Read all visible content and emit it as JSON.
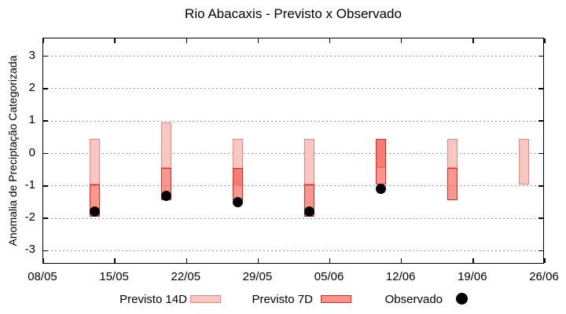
{
  "chart_data": {
    "type": "bar",
    "title": "Rio Abacaxis - Previsto x Observado",
    "xlabel": "",
    "ylabel": "Anomalia de Preciptação Categorizada",
    "ylim": [
      -3.4,
      3.55
    ],
    "y_ticks": [
      -3,
      -2,
      -1,
      0,
      1,
      2,
      3
    ],
    "x_tick_labels": [
      "08/05",
      "15/05",
      "22/05",
      "29/05",
      "05/06",
      "12/06",
      "19/06",
      "26/06"
    ],
    "x_tick_days": [
      0,
      7,
      14,
      21,
      28,
      35,
      42,
      49
    ],
    "x_axis_span_days": 49,
    "grid": "horizontal dotted lines at integer y values",
    "legend": {
      "position": "bottom",
      "items": [
        {
          "label": "Previsto 14D",
          "marker": "light-pink-box"
        },
        {
          "label": "Previsto 7D",
          "marker": "red-box"
        },
        {
          "label": "Observado",
          "marker": "black-dot"
        }
      ]
    },
    "colors": {
      "previsto_14d_fill": "#f9c7c1",
      "previsto_14d_border": "#ef8478",
      "previsto_7d_fill_rgba": "rgba(246,64,50,0.55)",
      "previsto_7d_border": "#e62420",
      "observado": "#000000",
      "grid": "#999999"
    },
    "points": [
      {
        "day": 5,
        "date": "13/05",
        "previsto_14d": [
          -0.95,
          0.45
        ],
        "previsto_7d": [
          -1.95,
          -0.95
        ],
        "observado": -1.8
      },
      {
        "day": 12,
        "date": "20/05",
        "previsto_14d": [
          -0.45,
          0.95
        ],
        "previsto_7d": [
          -1.45,
          -0.45
        ],
        "observado": -1.3
      },
      {
        "day": 19,
        "date": "27/05",
        "previsto_14d": [
          -0.95,
          0.45
        ],
        "previsto_7d": [
          -1.45,
          -0.45
        ],
        "observado": -1.5
      },
      {
        "day": 26,
        "date": "03/06",
        "previsto_14d": [
          -0.95,
          0.45
        ],
        "previsto_7d": [
          -1.95,
          -0.95
        ],
        "observado": -1.8
      },
      {
        "day": 33,
        "date": "10/06",
        "previsto_14d": [
          -0.45,
          0.45
        ],
        "previsto_7d": [
          -0.95,
          0.45
        ],
        "observado": -1.1
      },
      {
        "day": 40,
        "date": "17/06",
        "previsto_14d": [
          -0.45,
          0.45
        ],
        "previsto_7d": [
          -1.45,
          -0.45
        ],
        "observado": null
      },
      {
        "day": 47,
        "date": "24/06",
        "previsto_14d": [
          -0.95,
          0.45
        ],
        "previsto_7d": null,
        "observado": null
      }
    ]
  }
}
